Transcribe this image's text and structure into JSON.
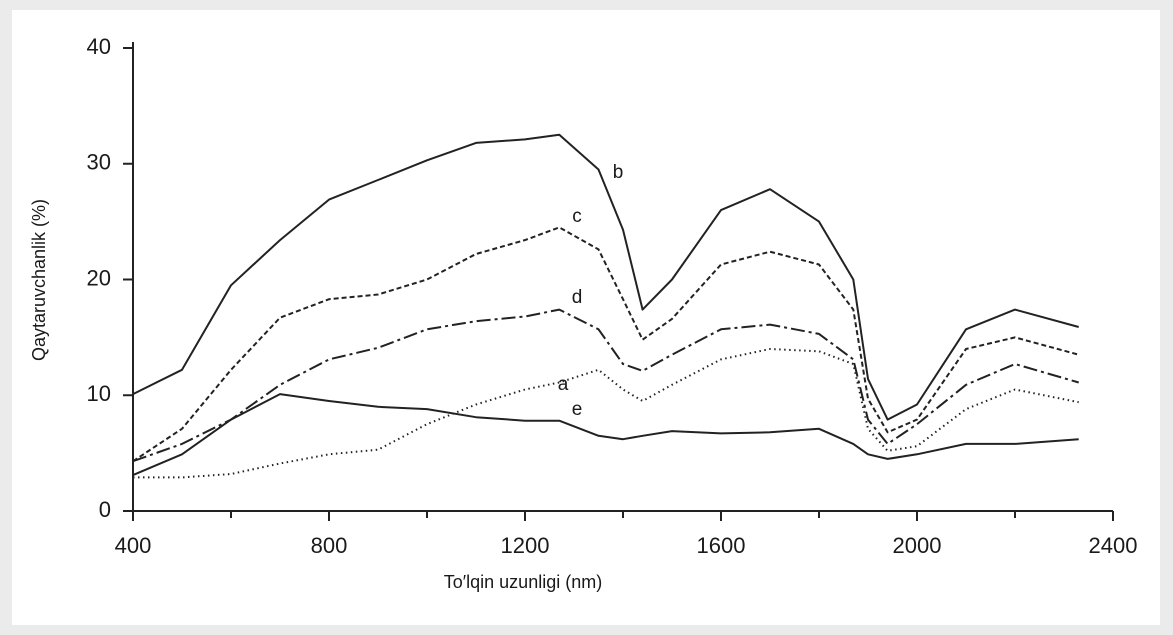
{
  "chart_data": {
    "type": "line",
    "xlabel": "To′lqin uzunligi (nm)",
    "ylabel": "Qaytaruvchanlik (%)",
    "x": [
      400,
      500,
      600,
      700,
      800,
      900,
      1000,
      1100,
      1200,
      1270,
      1350,
      1400,
      1440,
      1500,
      1600,
      1700,
      1800,
      1870,
      1900,
      1940,
      2000,
      2100,
      2200,
      2330
    ],
    "series": [
      {
        "name": "a",
        "color": "#222222",
        "dash": "1.5,3.5",
        "values": [
          2.9,
          2.9,
          3.2,
          4.1,
          4.9,
          5.3,
          7.5,
          9.2,
          10.5,
          11.1,
          12.2,
          10.5,
          9.5,
          10.9,
          13.1,
          14,
          13.8,
          12.7,
          7.1,
          5.2,
          5.6,
          8.8,
          10.5,
          9.4
        ]
      },
      {
        "name": "b",
        "color": "#222222",
        "dash": "none",
        "values": [
          10.1,
          12.2,
          19.5,
          23.4,
          26.9,
          28.6,
          30.3,
          31.8,
          32.1,
          32.5,
          29.5,
          24.3,
          17.4,
          20,
          26,
          27.8,
          25,
          20,
          11.4,
          7.9,
          9.2,
          15.7,
          17.4,
          15.9
        ]
      },
      {
        "name": "c",
        "color": "#222222",
        "dash": "5,3",
        "values": [
          4.3,
          7.1,
          12.2,
          16.7,
          18.3,
          18.7,
          20,
          22.2,
          23.4,
          24.5,
          22.6,
          18.3,
          14.8,
          16.6,
          21.3,
          22.4,
          21.3,
          17.4,
          9.7,
          6.8,
          7.9,
          14,
          15,
          13.5
        ]
      },
      {
        "name": "d",
        "color": "#222222",
        "dash": "14,4,3,4",
        "values": [
          4.3,
          5.8,
          7.9,
          10.9,
          13.1,
          14.1,
          15.7,
          16.4,
          16.8,
          17.4,
          15.7,
          12.7,
          12.1,
          13.5,
          15.7,
          16.1,
          15.3,
          13.1,
          7.9,
          5.8,
          7.5,
          10.9,
          12.7,
          11.1
        ]
      },
      {
        "name": "e",
        "color": "#222222",
        "dash": "none",
        "values": [
          3.1,
          4.9,
          7.9,
          10.1,
          9.5,
          9,
          8.8,
          8.1,
          7.8,
          7.8,
          6.5,
          6.2,
          6.5,
          6.9,
          6.7,
          6.8,
          7.1,
          5.8,
          4.9,
          4.5,
          4.9,
          5.8,
          5.8,
          6.2
        ]
      }
    ],
    "xlim": [
      400,
      2400
    ],
    "xticks": [
      400,
      800,
      1200,
      1600,
      2000,
      2400
    ],
    "xminorticks": [
      600,
      1000,
      1400,
      1800,
      2200
    ],
    "ylim": [
      0,
      40
    ],
    "yticks": [
      0,
      10,
      20,
      30,
      40
    ],
    "grid": false
  }
}
